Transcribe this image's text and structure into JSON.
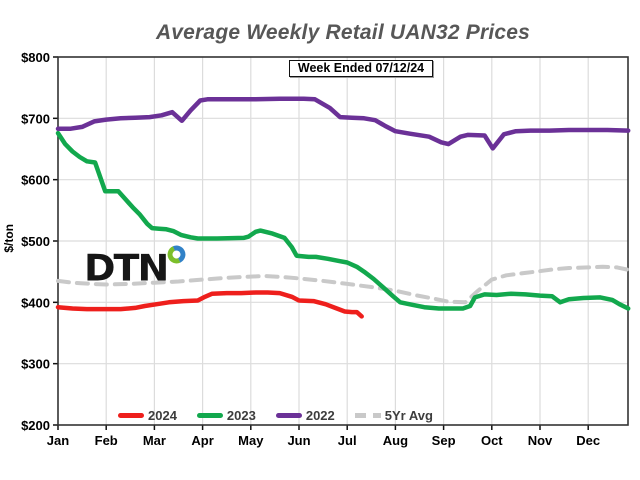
{
  "title": "Average Weekly Retail UAN32 Prices",
  "annotation": "Week Ended 07/12/24",
  "watermark": "DTN",
  "colors": {
    "background": "#ffffff",
    "grid": "#dcdcdc",
    "axis": "#333333",
    "tick": "#111111",
    "title_text": "#575757",
    "legend_text": "#3d3d3d",
    "logo_blue": "#3182c8",
    "logo_green": "#7cbf2b"
  },
  "chart_data": {
    "type": "line",
    "title": "Average Weekly Retail UAN32 Prices",
    "subtitle": "Week Ended 07/12/24",
    "xlabel": "",
    "ylabel": "$/ton",
    "grid": true,
    "legend_position": "bottom-inside",
    "x_axis": {
      "unit": "month (0 = Jan tick, 11 = Dec tick, 11.83 = right edge)",
      "tick_labels": [
        "Jan",
        "Feb",
        "Mar",
        "Apr",
        "May",
        "Jun",
        "Jul",
        "Aug",
        "Sep",
        "Oct",
        "Nov",
        "Dec"
      ]
    },
    "y_axis": {
      "min": 200,
      "max": 800,
      "step": 100,
      "tick_labels": [
        "$200",
        "$300",
        "$400",
        "$500",
        "$600",
        "$700",
        "$800"
      ]
    },
    "series": [
      {
        "name": "2024",
        "color": "#ee1f1c",
        "style": "solid",
        "points": [
          [
            0,
            392
          ],
          [
            0.3,
            390
          ],
          [
            0.6,
            389
          ],
          [
            0.9,
            389
          ],
          [
            1.3,
            389
          ],
          [
            1.6,
            391
          ],
          [
            1.8,
            394
          ],
          [
            2.05,
            397
          ],
          [
            2.3,
            400
          ],
          [
            2.6,
            402
          ],
          [
            2.9,
            403
          ],
          [
            3.05,
            409
          ],
          [
            3.2,
            414
          ],
          [
            3.5,
            415
          ],
          [
            3.8,
            415
          ],
          [
            4.1,
            416
          ],
          [
            4.35,
            416
          ],
          [
            4.6,
            415
          ],
          [
            4.85,
            409
          ],
          [
            5.0,
            403
          ],
          [
            5.3,
            402
          ],
          [
            5.55,
            397
          ],
          [
            5.75,
            391
          ],
          [
            5.95,
            385
          ],
          [
            6.1,
            384
          ],
          [
            6.2,
            384
          ],
          [
            6.3,
            377
          ]
        ]
      },
      {
        "name": "2023",
        "color": "#12a84d",
        "style": "solid",
        "points": [
          [
            0,
            676
          ],
          [
            0.15,
            658
          ],
          [
            0.3,
            646
          ],
          [
            0.45,
            637
          ],
          [
            0.6,
            630
          ],
          [
            0.77,
            628
          ],
          [
            0.98,
            581
          ],
          [
            1.25,
            581
          ],
          [
            1.4,
            568
          ],
          [
            1.55,
            555
          ],
          [
            1.7,
            543
          ],
          [
            1.85,
            528
          ],
          [
            1.95,
            521
          ],
          [
            2.1,
            520
          ],
          [
            2.25,
            519
          ],
          [
            2.4,
            516
          ],
          [
            2.55,
            510
          ],
          [
            2.75,
            506
          ],
          [
            2.9,
            504
          ],
          [
            3.3,
            504
          ],
          [
            3.85,
            505
          ],
          [
            3.95,
            507
          ],
          [
            4.1,
            515
          ],
          [
            4.2,
            517
          ],
          [
            4.45,
            512
          ],
          [
            4.7,
            505
          ],
          [
            4.85,
            490
          ],
          [
            4.95,
            476
          ],
          [
            5.2,
            474
          ],
          [
            5.35,
            474
          ],
          [
            5.6,
            471
          ],
          [
            5.85,
            467
          ],
          [
            6.0,
            465
          ],
          [
            6.2,
            458
          ],
          [
            6.35,
            450
          ],
          [
            6.55,
            438
          ],
          [
            6.75,
            424
          ],
          [
            6.95,
            410
          ],
          [
            7.1,
            400
          ],
          [
            7.35,
            396
          ],
          [
            7.6,
            392
          ],
          [
            7.9,
            390
          ],
          [
            8.4,
            390
          ],
          [
            8.55,
            394
          ],
          [
            8.65,
            408
          ],
          [
            8.85,
            413
          ],
          [
            9.1,
            412
          ],
          [
            9.4,
            414
          ],
          [
            9.7,
            413
          ],
          [
            10.0,
            411
          ],
          [
            10.25,
            410
          ],
          [
            10.42,
            400
          ],
          [
            10.6,
            405
          ],
          [
            10.9,
            407
          ],
          [
            11.25,
            408
          ],
          [
            11.5,
            404
          ],
          [
            11.65,
            397
          ],
          [
            11.83,
            390
          ]
        ]
      },
      {
        "name": "2022",
        "color": "#6b3197",
        "style": "solid",
        "points": [
          [
            0,
            683
          ],
          [
            0.25,
            683
          ],
          [
            0.5,
            686
          ],
          [
            0.75,
            695
          ],
          [
            1.0,
            698
          ],
          [
            1.3,
            700
          ],
          [
            1.6,
            701
          ],
          [
            1.9,
            702
          ],
          [
            2.15,
            705
          ],
          [
            2.37,
            710
          ],
          [
            2.57,
            696
          ],
          [
            2.75,
            713
          ],
          [
            2.95,
            729
          ],
          [
            3.1,
            731
          ],
          [
            3.6,
            731
          ],
          [
            4.1,
            731
          ],
          [
            4.6,
            732
          ],
          [
            5.1,
            732
          ],
          [
            5.33,
            731
          ],
          [
            5.64,
            717
          ],
          [
            5.85,
            702
          ],
          [
            6.1,
            701
          ],
          [
            6.35,
            700
          ],
          [
            6.58,
            697
          ],
          [
            6.78,
            688
          ],
          [
            7.0,
            679
          ],
          [
            7.3,
            675
          ],
          [
            7.7,
            670
          ],
          [
            7.95,
            661
          ],
          [
            8.1,
            658
          ],
          [
            8.35,
            670
          ],
          [
            8.5,
            673
          ],
          [
            8.85,
            672
          ],
          [
            9.02,
            651
          ],
          [
            9.25,
            674
          ],
          [
            9.5,
            679
          ],
          [
            9.8,
            680
          ],
          [
            10.2,
            680
          ],
          [
            10.6,
            681
          ],
          [
            11.0,
            681
          ],
          [
            11.4,
            681
          ],
          [
            11.83,
            680
          ]
        ]
      },
      {
        "name": "5Yr Avg",
        "color": "#c9c9c9",
        "style": "dashed",
        "points": [
          [
            0,
            435
          ],
          [
            0.3,
            432
          ],
          [
            0.7,
            430
          ],
          [
            1.0,
            429
          ],
          [
            1.5,
            430
          ],
          [
            2.0,
            432
          ],
          [
            2.5,
            434
          ],
          [
            3.0,
            437
          ],
          [
            3.5,
            440
          ],
          [
            4.0,
            442
          ],
          [
            4.3,
            443
          ],
          [
            4.7,
            441
          ],
          [
            5.0,
            439
          ],
          [
            5.5,
            435
          ],
          [
            6.0,
            430
          ],
          [
            6.5,
            425
          ],
          [
            7.0,
            419
          ],
          [
            7.4,
            412
          ],
          [
            7.8,
            406
          ],
          [
            8.1,
            401
          ],
          [
            8.45,
            400
          ],
          [
            8.7,
            418
          ],
          [
            9.0,
            437
          ],
          [
            9.3,
            444
          ],
          [
            9.7,
            448
          ],
          [
            10.0,
            451
          ],
          [
            10.3,
            454
          ],
          [
            10.6,
            456
          ],
          [
            11.0,
            457
          ],
          [
            11.3,
            458
          ],
          [
            11.6,
            457
          ],
          [
            11.83,
            453
          ]
        ]
      }
    ]
  }
}
